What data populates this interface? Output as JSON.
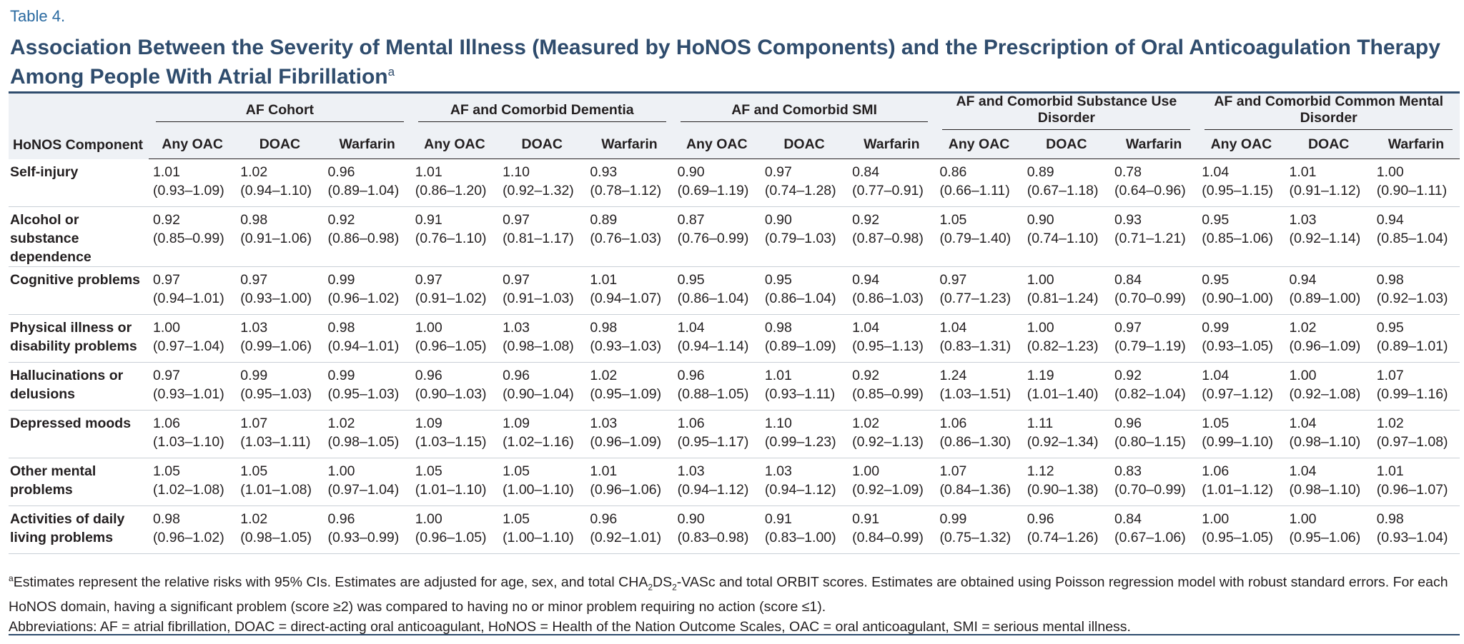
{
  "label": "Table 4.",
  "title": "Association Between the Severity of Mental Illness (Measured by HoNOS Components) and the Prescription of Oral Anticoagulation Therapy Among People With Atrial Fibrillation",
  "title_marker": "a",
  "table": {
    "row_header": "HoNOS Component",
    "groups": [
      {
        "name": "AF Cohort",
        "columns": [
          "Any OAC",
          "DOAC",
          "Warfarin"
        ]
      },
      {
        "name": "AF and Comorbid Dementia",
        "columns": [
          "Any OAC",
          "DOAC",
          "Warfarin"
        ]
      },
      {
        "name": "AF and Comorbid SMI",
        "columns": [
          "Any OAC",
          "DOAC",
          "Warfarin"
        ]
      },
      {
        "name": "AF and Comorbid Substance Use Disorder",
        "columns": [
          "Any OAC",
          "DOAC",
          "Warfarin"
        ]
      },
      {
        "name": "AF and Comorbid Common Mental Disorder",
        "columns": [
          "Any OAC",
          "DOAC",
          "Warfarin"
        ]
      }
    ],
    "rows": [
      {
        "label": "Self-injury",
        "cells": [
          [
            "1.01",
            "(0.93–1.09)"
          ],
          [
            "1.02",
            "(0.94–1.10)"
          ],
          [
            "0.96",
            "(0.89–1.04)"
          ],
          [
            "1.01",
            "(0.86–1.20)"
          ],
          [
            "1.10",
            "(0.92–1.32)"
          ],
          [
            "0.93",
            "(0.78–1.12)"
          ],
          [
            "0.90",
            "(0.69–1.19)"
          ],
          [
            "0.97",
            "(0.74–1.28)"
          ],
          [
            "0.84",
            "(0.77–0.91)"
          ],
          [
            "0.86",
            "(0.66–1.11)"
          ],
          [
            "0.89",
            "(0.67–1.18)"
          ],
          [
            "0.78",
            "(0.64–0.96)"
          ],
          [
            "1.04",
            "(0.95–1.15)"
          ],
          [
            "1.01",
            "(0.91–1.12)"
          ],
          [
            "1.00",
            "(0.90–1.11)"
          ]
        ]
      },
      {
        "label": "Alcohol or substance dependence",
        "cells": [
          [
            "0.92",
            "(0.85–0.99)"
          ],
          [
            "0.98",
            "(0.91–1.06)"
          ],
          [
            "0.92",
            "(0.86–0.98)"
          ],
          [
            "0.91",
            "(0.76–1.10)"
          ],
          [
            "0.97",
            "(0.81–1.17)"
          ],
          [
            "0.89",
            "(0.76–1.03)"
          ],
          [
            "0.87",
            "(0.76–0.99)"
          ],
          [
            "0.90",
            "(0.79–1.03)"
          ],
          [
            "0.92",
            "(0.87–0.98)"
          ],
          [
            "1.05",
            "(0.79–1.40)"
          ],
          [
            "0.90",
            "(0.74–1.10)"
          ],
          [
            "0.93",
            "(0.71–1.21)"
          ],
          [
            "0.95",
            "(0.85–1.06)"
          ],
          [
            "1.03",
            "(0.92–1.14)"
          ],
          [
            "0.94",
            "(0.85–1.04)"
          ]
        ]
      },
      {
        "label": "Cognitive problems",
        "cells": [
          [
            "0.97",
            "(0.94–1.01)"
          ],
          [
            "0.97",
            "(0.93–1.00)"
          ],
          [
            "0.99",
            "(0.96–1.02)"
          ],
          [
            "0.97",
            "(0.91–1.02)"
          ],
          [
            "0.97",
            "(0.91–1.03)"
          ],
          [
            "1.01",
            "(0.94–1.07)"
          ],
          [
            "0.95",
            "(0.86–1.04)"
          ],
          [
            "0.95",
            "(0.86–1.04)"
          ],
          [
            "0.94",
            "(0.86–1.03)"
          ],
          [
            "0.97",
            "(0.77–1.23)"
          ],
          [
            "1.00",
            "(0.81–1.24)"
          ],
          [
            "0.84",
            "(0.70–0.99)"
          ],
          [
            "0.95",
            "(0.90–1.00)"
          ],
          [
            "0.94",
            "(0.89–1.00)"
          ],
          [
            "0.98",
            "(0.92–1.03)"
          ]
        ]
      },
      {
        "label": "Physical illness or disability problems",
        "cells": [
          [
            "1.00",
            "(0.97–1.04)"
          ],
          [
            "1.03",
            "(0.99–1.06)"
          ],
          [
            "0.98",
            "(0.94–1.01)"
          ],
          [
            "1.00",
            "(0.96–1.05)"
          ],
          [
            "1.03",
            "(0.98–1.08)"
          ],
          [
            "0.98",
            "(0.93–1.03)"
          ],
          [
            "1.04",
            "(0.94–1.14)"
          ],
          [
            "0.98",
            "(0.89–1.09)"
          ],
          [
            "1.04",
            "(0.95–1.13)"
          ],
          [
            "1.04",
            "(0.83–1.31)"
          ],
          [
            "1.00",
            "(0.82–1.23)"
          ],
          [
            "0.97",
            "(0.79–1.19)"
          ],
          [
            "0.99",
            "(0.93–1.05)"
          ],
          [
            "1.02",
            "(0.96–1.09)"
          ],
          [
            "0.95",
            "(0.89–1.01)"
          ]
        ]
      },
      {
        "label": "Hallucinations or delusions",
        "cells": [
          [
            "0.97",
            "(0.93–1.01)"
          ],
          [
            "0.99",
            "(0.95–1.03)"
          ],
          [
            "0.99",
            "(0.95–1.03)"
          ],
          [
            "0.96",
            "(0.90–1.03)"
          ],
          [
            "0.96",
            "(0.90–1.04)"
          ],
          [
            "1.02",
            "(0.95–1.09)"
          ],
          [
            "0.96",
            "(0.88–1.05)"
          ],
          [
            "1.01",
            "(0.93–1.11)"
          ],
          [
            "0.92",
            "(0.85–0.99)"
          ],
          [
            "1.24",
            "(1.03–1.51)"
          ],
          [
            "1.19",
            "(1.01–1.40)"
          ],
          [
            "0.92",
            "(0.82–1.04)"
          ],
          [
            "1.04",
            "(0.97–1.12)"
          ],
          [
            "1.00",
            "(0.92–1.08)"
          ],
          [
            "1.07",
            "(0.99–1.16)"
          ]
        ]
      },
      {
        "label": "Depressed moods",
        "cells": [
          [
            "1.06",
            "(1.03–1.10)"
          ],
          [
            "1.07",
            "(1.03–1.11)"
          ],
          [
            "1.02",
            "(0.98–1.05)"
          ],
          [
            "1.09",
            "(1.03–1.15)"
          ],
          [
            "1.09",
            "(1.02–1.16)"
          ],
          [
            "1.03",
            "(0.96–1.09)"
          ],
          [
            "1.06",
            "(0.95–1.17)"
          ],
          [
            "1.10",
            "(0.99–1.23)"
          ],
          [
            "1.02",
            "(0.92–1.13)"
          ],
          [
            "1.06",
            "(0.86–1.30)"
          ],
          [
            "1.11",
            "(0.92–1.34)"
          ],
          [
            "0.96",
            "(0.80–1.15)"
          ],
          [
            "1.05",
            "(0.99–1.10)"
          ],
          [
            "1.04",
            "(0.98–1.10)"
          ],
          [
            "1.02",
            "(0.97–1.08)"
          ]
        ]
      },
      {
        "label": "Other mental problems",
        "cells": [
          [
            "1.05",
            "(1.02–1.08)"
          ],
          [
            "1.05",
            "(1.01–1.08)"
          ],
          [
            "1.00",
            "(0.97–1.04)"
          ],
          [
            "1.05",
            "(1.01–1.10)"
          ],
          [
            "1.05",
            "(1.00–1.10)"
          ],
          [
            "1.01",
            "(0.96–1.06)"
          ],
          [
            "1.03",
            "(0.94–1.12)"
          ],
          [
            "1.03",
            "(0.94–1.12)"
          ],
          [
            "1.00",
            "(0.92–1.09)"
          ],
          [
            "1.07",
            "(0.84–1.36)"
          ],
          [
            "1.12",
            "(0.90–1.38)"
          ],
          [
            "0.83",
            "(0.70–0.99)"
          ],
          [
            "1.06",
            "(1.01–1.12)"
          ],
          [
            "1.04",
            "(0.98–1.10)"
          ],
          [
            "1.01",
            "(0.96–1.07)"
          ]
        ]
      },
      {
        "label": "Activities of daily living problems",
        "cells": [
          [
            "0.98",
            "(0.96–1.02)"
          ],
          [
            "1.02",
            "(0.98–1.05)"
          ],
          [
            "0.96",
            "(0.93–0.99)"
          ],
          [
            "1.00",
            "(0.96–1.05)"
          ],
          [
            "1.05",
            "(1.00–1.10)"
          ],
          [
            "0.96",
            "(0.92–1.01)"
          ],
          [
            "0.90",
            "(0.83–0.98)"
          ],
          [
            "0.91",
            "(0.83–1.00)"
          ],
          [
            "0.91",
            "(0.84–0.99)"
          ],
          [
            "0.99",
            "(0.75–1.32)"
          ],
          [
            "0.96",
            "(0.74–1.26)"
          ],
          [
            "0.84",
            "(0.67–1.06)"
          ],
          [
            "1.00",
            "(0.95–1.05)"
          ],
          [
            "1.00",
            "(0.95–1.06)"
          ],
          [
            "0.98",
            "(0.93–1.04)"
          ]
        ]
      }
    ]
  },
  "footnote": {
    "marker": "a",
    "text_1": "Estimates represent the relative risks with 95% CIs. Estimates are adjusted for age, sex, and total CHA",
    "sub_1": "2",
    "text_2": "DS",
    "sub_2": "2",
    "text_3": "-VASc and total ORBIT scores. Estimates are obtained using Poisson regression model with robust standard errors. For each HoNOS domain, having a significant problem (score ≥2) was compared to having no or minor problem requiring no action (score ≤1)."
  },
  "abbreviations": "Abbreviations: AF = atrial fibrillation, DOAC = direct-acting oral anticoagulant, HoNOS = Health of the Nation Outcome Scales, OAC = oral anticoagulant, SMI = serious mental illness."
}
